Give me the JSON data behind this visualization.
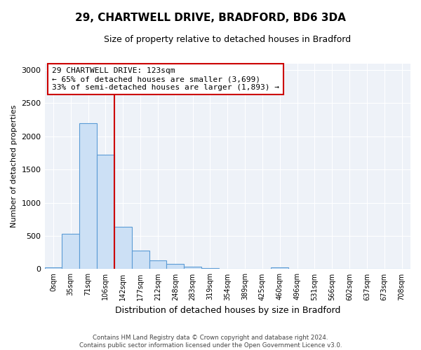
{
  "title_line1": "29, CHARTWELL DRIVE, BRADFORD, BD6 3DA",
  "title_line2": "Size of property relative to detached houses in Bradford",
  "xlabel": "Distribution of detached houses by size in Bradford",
  "ylabel": "Number of detached properties",
  "bar_labels": [
    "0sqm",
    "35sqm",
    "71sqm",
    "106sqm",
    "142sqm",
    "177sqm",
    "212sqm",
    "248sqm",
    "283sqm",
    "319sqm",
    "354sqm",
    "389sqm",
    "425sqm",
    "460sqm",
    "496sqm",
    "531sqm",
    "566sqm",
    "602sqm",
    "637sqm",
    "673sqm",
    "708sqm"
  ],
  "bar_values": [
    30,
    530,
    2200,
    1720,
    640,
    280,
    130,
    75,
    35,
    15,
    5,
    5,
    5,
    30,
    0,
    0,
    0,
    0,
    0,
    0,
    0
  ],
  "bar_color": "#cce0f5",
  "bar_edge_color": "#5b9bd5",
  "property_line_x": 3.5,
  "annotation_text": "29 CHARTWELL DRIVE: 123sqm\n← 65% of detached houses are smaller (3,699)\n33% of semi-detached houses are larger (1,893) →",
  "annotation_box_color": "#ffffff",
  "annotation_box_edge_color": "#cc0000",
  "vline_color": "#cc0000",
  "ylim": [
    0,
    3100
  ],
  "yticks": [
    0,
    500,
    1000,
    1500,
    2000,
    2500,
    3000
  ],
  "footnote": "Contains HM Land Registry data © Crown copyright and database right 2024.\nContains public sector information licensed under the Open Government Licence v3.0.",
  "bg_color": "#ffffff",
  "plot_bg_color": "#eef2f8",
  "grid_color": "#ffffff",
  "title1_fontsize": 11,
  "title2_fontsize": 9,
  "ylabel_fontsize": 8,
  "xlabel_fontsize": 9
}
